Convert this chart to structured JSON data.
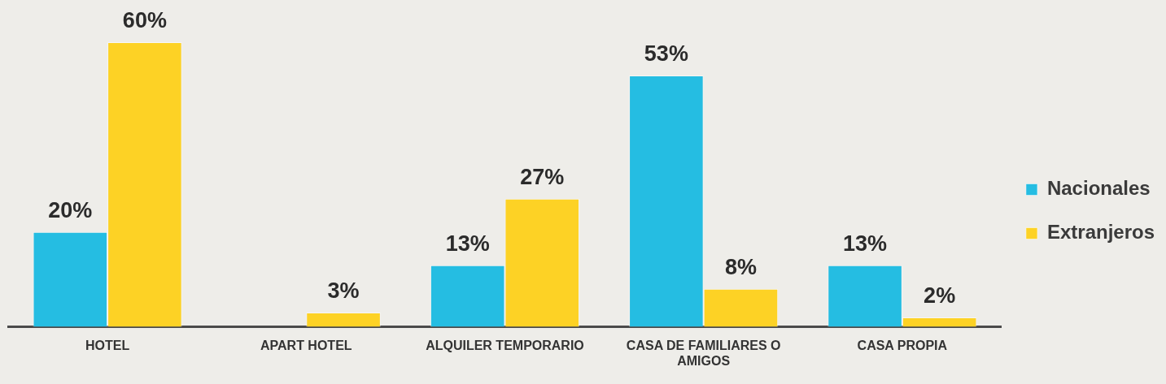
{
  "chart_data": {
    "type": "bar",
    "categories": [
      "HOTEL",
      "APART HOTEL",
      "ALQUILER TEMPORARIO",
      "CASA DE FAMILIARES O AMIGOS",
      "CASA PROPIA"
    ],
    "series": [
      {
        "name": "Nacionales",
        "color": "#25bde2",
        "values": [
          20,
          null,
          13,
          53,
          13
        ],
        "value_labels": [
          "20%",
          null,
          "13%",
          "53%",
          "13%"
        ]
      },
      {
        "name": "Extranjeros",
        "color": "#fdd225",
        "values": [
          60,
          3,
          27,
          8,
          2
        ],
        "value_labels": [
          "60%",
          "3%",
          "27%",
          "8%",
          "2%"
        ]
      }
    ],
    "legend": "right"
  }
}
